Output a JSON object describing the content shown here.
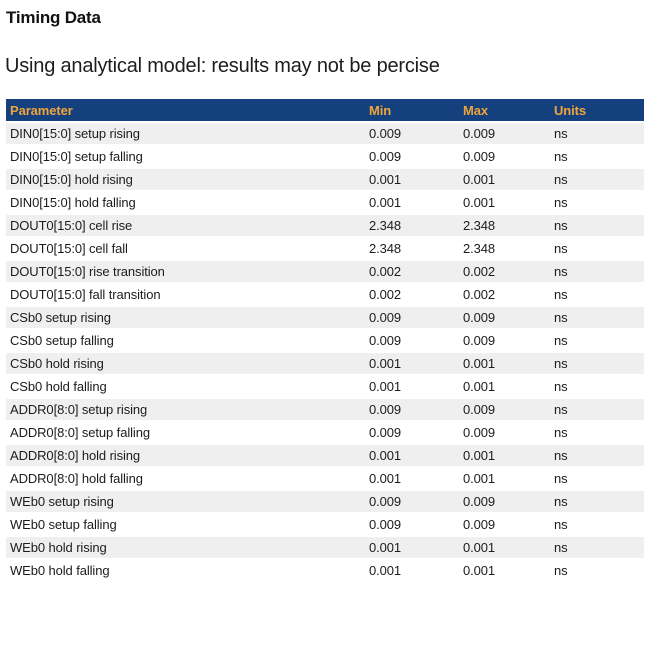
{
  "page": {
    "title": "Timing Data",
    "subtitle": "Using analytical model: results may not be percise"
  },
  "table": {
    "columns": [
      "Parameter",
      "Min",
      "Max",
      "Units"
    ],
    "rows": [
      {
        "parameter": "DIN0[15:0] setup rising",
        "min": "0.009",
        "max": "0.009",
        "units": "ns"
      },
      {
        "parameter": "DIN0[15:0] setup falling",
        "min": "0.009",
        "max": "0.009",
        "units": "ns"
      },
      {
        "parameter": "DIN0[15:0] hold rising",
        "min": "0.001",
        "max": "0.001",
        "units": "ns"
      },
      {
        "parameter": "DIN0[15:0] hold falling",
        "min": "0.001",
        "max": "0.001",
        "units": "ns"
      },
      {
        "parameter": "DOUT0[15:0] cell rise",
        "min": "2.348",
        "max": "2.348",
        "units": "ns"
      },
      {
        "parameter": "DOUT0[15:0] cell fall",
        "min": "2.348",
        "max": "2.348",
        "units": "ns"
      },
      {
        "parameter": "DOUT0[15:0] rise transition",
        "min": "0.002",
        "max": "0.002",
        "units": "ns"
      },
      {
        "parameter": "DOUT0[15:0] fall transition",
        "min": "0.002",
        "max": "0.002",
        "units": "ns"
      },
      {
        "parameter": "CSb0 setup rising",
        "min": "0.009",
        "max": "0.009",
        "units": "ns"
      },
      {
        "parameter": "CSb0 setup falling",
        "min": "0.009",
        "max": "0.009",
        "units": "ns"
      },
      {
        "parameter": "CSb0 hold rising",
        "min": "0.001",
        "max": "0.001",
        "units": "ns"
      },
      {
        "parameter": "CSb0 hold falling",
        "min": "0.001",
        "max": "0.001",
        "units": "ns"
      },
      {
        "parameter": "ADDR0[8:0] setup rising",
        "min": "0.009",
        "max": "0.009",
        "units": "ns"
      },
      {
        "parameter": "ADDR0[8:0] setup falling",
        "min": "0.009",
        "max": "0.009",
        "units": "ns"
      },
      {
        "parameter": "ADDR0[8:0] hold rising",
        "min": "0.001",
        "max": "0.001",
        "units": "ns"
      },
      {
        "parameter": "ADDR0[8:0] hold falling",
        "min": "0.001",
        "max": "0.001",
        "units": "ns"
      },
      {
        "parameter": "WEb0 setup rising",
        "min": "0.009",
        "max": "0.009",
        "units": "ns"
      },
      {
        "parameter": "WEb0 setup falling",
        "min": "0.009",
        "max": "0.009",
        "units": "ns"
      },
      {
        "parameter": "WEb0 hold rising",
        "min": "0.001",
        "max": "0.001",
        "units": "ns"
      },
      {
        "parameter": "WEb0 hold falling",
        "min": "0.001",
        "max": "0.001",
        "units": "ns"
      }
    ]
  },
  "colors": {
    "header_bg": "#14417d",
    "header_text": "#f0a43c",
    "row_alt_bg": "#efefef",
    "row_text": "#1c1c1c",
    "title_text": "#111111"
  }
}
